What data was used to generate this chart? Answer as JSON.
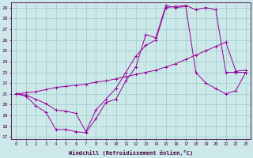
{
  "xlabel": "Windchill (Refroidissement éolien,°C)",
  "bg_color": "#cce8e8",
  "grid_color": "#99cccc",
  "line_color": "#990099",
  "xlim": [
    -0.5,
    23.5
  ],
  "ylim": [
    16.8,
    29.5
  ],
  "xticks": [
    0,
    1,
    2,
    3,
    4,
    5,
    6,
    7,
    8,
    9,
    10,
    11,
    12,
    13,
    14,
    15,
    16,
    17,
    18,
    19,
    20,
    21,
    22,
    23
  ],
  "yticks": [
    17,
    18,
    19,
    20,
    21,
    22,
    23,
    24,
    25,
    26,
    27,
    28,
    29
  ],
  "series1_x": [
    0,
    1,
    2,
    3,
    4,
    5,
    6,
    7,
    8,
    9,
    10,
    11,
    12,
    13,
    14,
    15,
    16,
    17,
    18,
    19,
    20,
    21,
    22,
    23
  ],
  "series1_y": [
    21.0,
    20.8,
    19.9,
    19.3,
    17.7,
    17.7,
    17.5,
    17.4,
    18.7,
    20.2,
    20.5,
    22.2,
    23.5,
    26.5,
    26.2,
    29.2,
    29.0,
    29.1,
    23.0,
    22.0,
    21.5,
    21.0,
    21.3,
    23.0
  ],
  "series2_x": [
    0,
    1,
    2,
    3,
    4,
    5,
    6,
    7,
    8,
    9,
    10,
    11,
    12,
    13,
    14,
    15,
    16,
    17,
    18,
    19,
    20,
    21,
    22,
    23
  ],
  "series2_y": [
    21.0,
    20.9,
    20.5,
    20.1,
    19.5,
    19.4,
    19.2,
    17.5,
    19.5,
    20.5,
    21.5,
    23.0,
    24.5,
    25.5,
    26.0,
    29.0,
    29.1,
    29.2,
    28.8,
    29.0,
    28.8,
    23.0,
    23.0,
    23.0
  ],
  "series3_x": [
    0,
    1,
    2,
    3,
    4,
    5,
    6,
    7,
    8,
    9,
    10,
    11,
    12,
    13,
    14,
    15,
    16,
    17,
    18,
    19,
    20,
    21,
    22,
    23
  ],
  "series3_y": [
    21.0,
    21.1,
    21.2,
    21.4,
    21.6,
    21.7,
    21.8,
    21.9,
    22.1,
    22.2,
    22.4,
    22.6,
    22.8,
    23.0,
    23.2,
    23.5,
    23.8,
    24.2,
    24.6,
    25.0,
    25.4,
    25.8,
    23.1,
    23.2
  ]
}
